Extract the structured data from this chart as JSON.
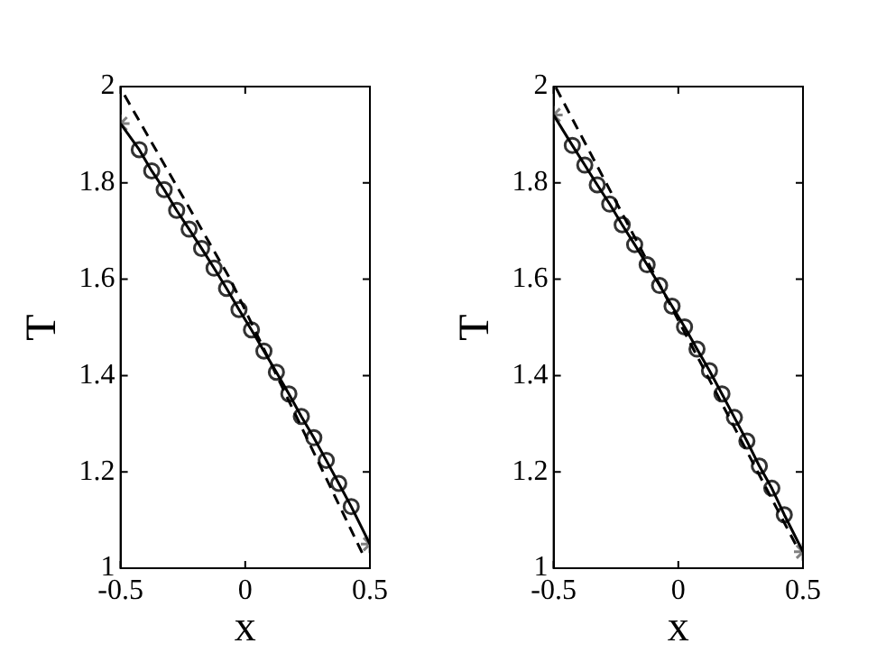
{
  "chart_data": [
    {
      "type": "line",
      "xlabel": "x",
      "ylabel": "T",
      "xlim": [
        -0.5,
        0.5
      ],
      "xticks": [
        -0.5,
        0,
        0.5
      ],
      "ylim": [
        1,
        2
      ],
      "yticks": [
        1,
        1.2,
        1.4,
        1.6,
        1.8,
        2
      ],
      "grid": false,
      "legend": false,
      "series": [
        {
          "type": "line",
          "line_style": "dashed",
          "marker": "none",
          "color": "#000000",
          "x": [
            -0.484,
            -0.06,
            0.478
          ],
          "values": [
            1.982,
            1.6,
            1.022
          ]
        },
        {
          "type": "line",
          "line_style": "solid",
          "marker": "none",
          "color": "#000000",
          "x": [
            -0.5,
            -0.425,
            -0.375,
            -0.325,
            -0.275,
            -0.225,
            -0.175,
            -0.125,
            -0.075,
            -0.025,
            0.025,
            0.075,
            0.125,
            0.175,
            0.225,
            0.275,
            0.325,
            0.375,
            0.425,
            0.5
          ],
          "values": [
            1.923,
            1.869,
            1.825,
            1.786,
            1.743,
            1.704,
            1.664,
            1.623,
            1.581,
            1.537,
            1.495,
            1.451,
            1.407,
            1.362,
            1.315,
            1.271,
            1.224,
            1.176,
            1.128,
            1.05
          ]
        },
        {
          "type": "scatter",
          "marker": "circle",
          "color": "#333333",
          "x": [
            -0.425,
            -0.375,
            -0.325,
            -0.275,
            -0.225,
            -0.175,
            -0.125,
            -0.075,
            -0.025,
            0.025,
            0.075,
            0.125,
            0.175,
            0.225,
            0.275,
            0.325,
            0.375,
            0.425
          ],
          "values": [
            1.869,
            1.825,
            1.786,
            1.743,
            1.704,
            1.664,
            1.623,
            1.581,
            1.537,
            1.495,
            1.451,
            1.407,
            1.362,
            1.315,
            1.271,
            1.224,
            1.176,
            1.128
          ]
        },
        {
          "type": "scatter",
          "marker": "cross",
          "color": "#808080",
          "x": [
            -0.5,
            0.5
          ],
          "values": [
            1.923,
            1.05
          ]
        }
      ]
    },
    {
      "type": "line",
      "xlabel": "x",
      "ylabel": "T",
      "xlim": [
        -0.5,
        0.5
      ],
      "xticks": [
        -0.5,
        0,
        0.5
      ],
      "ylim": [
        1,
        2
      ],
      "yticks": [
        1,
        1.2,
        1.4,
        1.6,
        1.8,
        2
      ],
      "grid": false,
      "legend": false,
      "series": [
        {
          "type": "line",
          "line_style": "dashed",
          "marker": "none",
          "color": "#000000",
          "x": [
            -0.491,
            -0.075,
            0.47
          ],
          "values": [
            1.998,
            1.589,
            1.05
          ]
        },
        {
          "type": "line",
          "line_style": "solid",
          "marker": "none",
          "color": "#000000",
          "x": [
            -0.5,
            -0.425,
            -0.375,
            -0.325,
            -0.275,
            -0.225,
            -0.175,
            -0.125,
            -0.075,
            -0.025,
            0.025,
            0.075,
            0.125,
            0.175,
            0.225,
            0.275,
            0.325,
            0.375,
            0.425,
            0.5
          ],
          "values": [
            1.941,
            1.878,
            1.837,
            1.796,
            1.756,
            1.713,
            1.672,
            1.63,
            1.587,
            1.544,
            1.501,
            1.455,
            1.41,
            1.362,
            1.313,
            1.264,
            1.212,
            1.166,
            1.111,
            1.034
          ]
        },
        {
          "type": "scatter",
          "marker": "circle",
          "color": "#333333",
          "x": [
            -0.425,
            -0.375,
            -0.325,
            -0.275,
            -0.225,
            -0.175,
            -0.125,
            -0.075,
            -0.025,
            0.025,
            0.075,
            0.125,
            0.175,
            0.225,
            0.275,
            0.325,
            0.375,
            0.425
          ],
          "values": [
            1.878,
            1.837,
            1.796,
            1.756,
            1.713,
            1.672,
            1.63,
            1.587,
            1.544,
            1.501,
            1.455,
            1.41,
            1.362,
            1.313,
            1.264,
            1.212,
            1.166,
            1.111
          ]
        },
        {
          "type": "scatter",
          "marker": "cross",
          "color": "#808080",
          "x": [
            -0.5,
            0.5
          ],
          "values": [
            1.941,
            1.034
          ]
        }
      ]
    }
  ]
}
